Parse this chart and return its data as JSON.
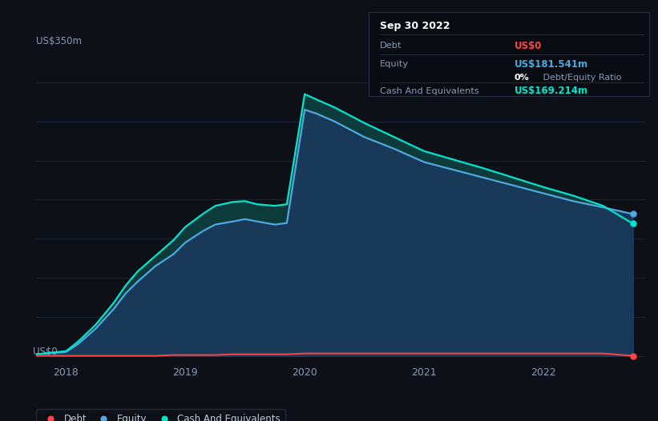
{
  "background_color": "#0d1117",
  "plot_bg_color": "#0d1117",
  "title_box": {
    "date": "Sep 30 2022",
    "debt_label": "Debt",
    "debt_value": "US$0",
    "equity_label": "Equity",
    "equity_value": "US$181.541m",
    "ratio_value": "0%",
    "ratio_label": " Debt/Equity Ratio",
    "cash_label": "Cash And Equivalents",
    "cash_value": "US$169.214m",
    "bg": "#080c12",
    "border": "#2a3040",
    "text_color": "#8a9ab5",
    "date_color": "#ffffff",
    "debt_val_color": "#ff4444",
    "equity_val_color": "#4fa8e0",
    "ratio_pct_color": "#ffffff",
    "cash_val_color": "#00e5cc"
  },
  "ylabel": "US$350m",
  "ylabel0": "US$0",
  "x_ticks": [
    "2018",
    "2019",
    "2020",
    "2021",
    "2022"
  ],
  "grid_color": "#1e2a3a",
  "line_debt_color": "#ff4444",
  "line_equity_color": "#4fa8e0",
  "line_cash_color": "#00e5cc",
  "fill_equity_color": "#1a3a5c",
  "fill_cash_color": "#0d4040",
  "legend_items": [
    {
      "label": "Debt",
      "color": "#ff4444"
    },
    {
      "label": "Equity",
      "color": "#4fa8e0"
    },
    {
      "label": "Cash And Equivalents",
      "color": "#00e5cc"
    }
  ],
  "times": [
    2017.75,
    2018.0,
    2018.1,
    2018.25,
    2018.4,
    2018.5,
    2018.6,
    2018.75,
    2018.9,
    2019.0,
    2019.15,
    2019.25,
    2019.4,
    2019.5,
    2019.6,
    2019.75,
    2019.85,
    2020.0,
    2020.1,
    2020.25,
    2020.5,
    2020.75,
    2021.0,
    2021.25,
    2021.5,
    2021.75,
    2022.0,
    2022.25,
    2022.5,
    2022.75
  ],
  "equity": [
    2,
    5,
    15,
    35,
    60,
    80,
    95,
    115,
    130,
    145,
    160,
    168,
    172,
    175,
    172,
    168,
    170,
    315,
    310,
    300,
    280,
    265,
    248,
    238,
    228,
    218,
    208,
    198,
    190,
    181.5
  ],
  "cash": [
    2,
    6,
    18,
    40,
    68,
    90,
    108,
    128,
    148,
    165,
    182,
    192,
    197,
    198,
    194,
    192,
    194,
    335,
    328,
    318,
    298,
    280,
    262,
    251,
    240,
    228,
    216,
    205,
    192,
    169.2
  ],
  "debt": [
    0,
    0,
    0,
    0,
    0,
    0,
    0,
    0,
    1,
    1,
    1,
    1,
    2,
    2,
    2,
    2,
    2,
    3,
    3,
    3,
    3,
    3,
    3,
    3,
    3,
    3,
    3,
    3,
    3,
    0
  ]
}
